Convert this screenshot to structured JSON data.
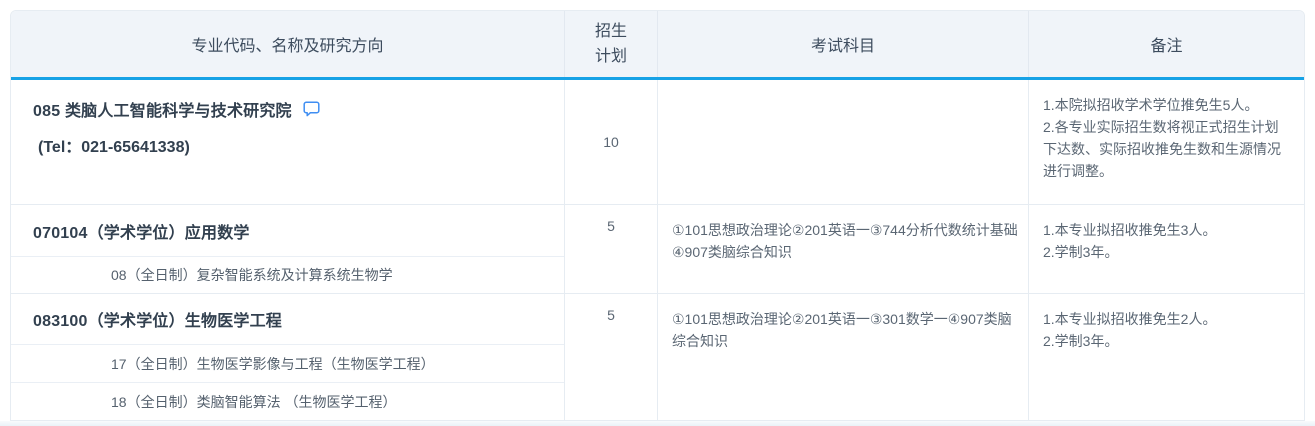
{
  "table": {
    "headers": [
      "专业代码、名称及研究方向",
      "招生计划",
      "考试科目",
      "备注"
    ],
    "sections": [
      {
        "title": "085 类脑人工智能科学与技术研究院",
        "tel": "(Tel：021-65641338)",
        "comment_icon": true,
        "plan": "10",
        "exam": "",
        "notes": [
          "1.本院拟招收学术学位推免生5人。",
          "2.各专业实际招生数将视正式招生计划下达数、实际招收推免生数和生源情况进行调整。"
        ],
        "directions": []
      },
      {
        "title": "070104（学术学位）应用数学",
        "tel": "",
        "comment_icon": false,
        "plan": "5",
        "exam": "①101思想政治理论②201英语一③744分析代数统计基础④907类脑综合知识",
        "notes": [
          "1.本专业拟招收推免生3人。",
          "2.学制3年。"
        ],
        "directions": [
          "08（全日制）复杂智能系统及计算系统生物学"
        ]
      },
      {
        "title": "083100（学术学位）生物医学工程",
        "tel": "",
        "comment_icon": false,
        "plan": "5",
        "exam": "①101思想政治理论②201英语一③301数学一④907类脑综合知识",
        "notes": [
          "1.本专业拟招收推免生2人。",
          "2.学制3年。"
        ],
        "directions": [
          "17（全日制）生物医学影像与工程（生物医学工程）",
          "18（全日制）类脑智能算法 （生物医学工程）"
        ]
      }
    ]
  },
  "colors": {
    "header_bg": "#f0f4f9",
    "accent_line": "#17a2e6",
    "border": "#e6ecf2",
    "title_text": "#32404f",
    "body_text": "#5a6673",
    "comment_icon": "#3f8ef2"
  }
}
